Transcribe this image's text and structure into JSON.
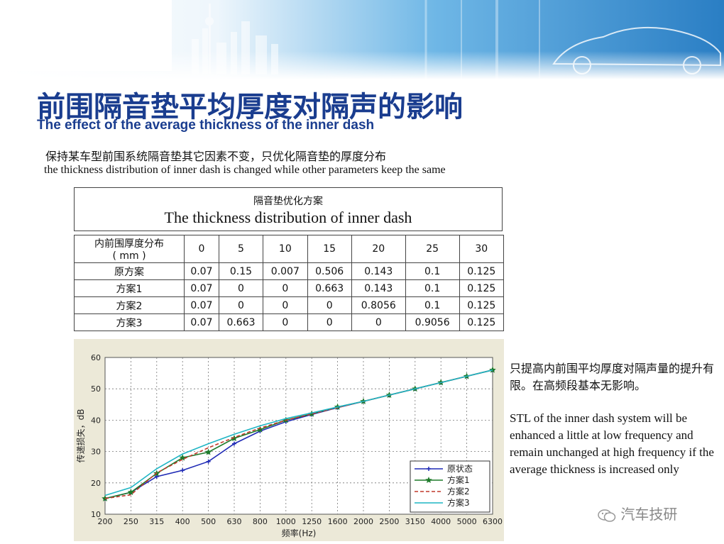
{
  "header": {
    "title_cn": "前围隔音垫平均厚度对隔声的影响",
    "title_en": "The effect of the average thickness of the inner dash"
  },
  "intro": {
    "cn": "保持某车型前围系统隔音垫其它因素不变，只优化隔音垫的厚度分布",
    "en": "the thickness distribution of inner dash is changed while other parameters keep the same"
  },
  "table_caption": {
    "cn": "隔音垫优化方案",
    "en": "The thickness distribution of inner dash"
  },
  "thickness_table": {
    "header_label_line1": "内前围厚度分布",
    "header_label_line2": "( mm )",
    "columns": [
      "0",
      "5",
      "10",
      "15",
      "20",
      "25",
      "30"
    ],
    "rows": [
      {
        "name": "原方案",
        "values": [
          "0.07",
          "0.15",
          "0.007",
          "0.506",
          "0.143",
          "0.1",
          "0.125"
        ]
      },
      {
        "name": "方案1",
        "values": [
          "0.07",
          "0",
          "0",
          "0.663",
          "0.143",
          "0.1",
          "0.125"
        ]
      },
      {
        "name": "方案2",
        "values": [
          "0.07",
          "0",
          "0",
          "0",
          "0.8056",
          "0.1",
          "0.125"
        ]
      },
      {
        "name": "方案3",
        "values": [
          "0.07",
          "0.663",
          "0",
          "0",
          "0",
          "0.9056",
          "0.125"
        ]
      }
    ]
  },
  "chart_data": {
    "type": "line",
    "x": [
      "200",
      "250",
      "315",
      "400",
      "500",
      "630",
      "800",
      "1000",
      "1250",
      "1600",
      "2000",
      "2500",
      "3150",
      "4000",
      "5000",
      "6300"
    ],
    "xlabel": "频率(Hz)",
    "ylabel": "传递损失，dB",
    "ylim": [
      10,
      60
    ],
    "yticks": [
      10,
      20,
      30,
      40,
      50,
      60
    ],
    "grid": true,
    "legend_position": "bottom-right",
    "series": [
      {
        "name": "原状态",
        "color": "#1f2ab5",
        "dash": "solid",
        "marker": "plus",
        "values": [
          15.0,
          17.0,
          22.0,
          24.0,
          26.8,
          32.5,
          36.5,
          39.5,
          41.8,
          44.0,
          46.0,
          48.0,
          50.0,
          52.0,
          54.0,
          56.0
        ]
      },
      {
        "name": "方案1",
        "color": "#1e7a2a",
        "dash": "solid",
        "marker": "star",
        "values": [
          15.0,
          17.0,
          23.0,
          28.0,
          29.8,
          34.2,
          37.0,
          40.0,
          42.0,
          44.2,
          46.0,
          48.0,
          50.0,
          52.0,
          54.0,
          56.0
        ]
      },
      {
        "name": "方案2",
        "color": "#c0392b",
        "dash": "dashed",
        "marker": "none",
        "values": [
          15.0,
          16.2,
          23.2,
          27.5,
          31.2,
          34.5,
          37.5,
          40.0,
          42.0,
          44.0,
          46.0,
          48.0,
          50.0,
          52.0,
          54.0,
          56.0
        ]
      },
      {
        "name": "方案3",
        "color": "#1fb5c4",
        "dash": "solid",
        "marker": "none",
        "values": [
          16.0,
          18.5,
          24.5,
          29.2,
          32.5,
          35.5,
          38.2,
          40.5,
          42.3,
          44.2,
          46.0,
          48.0,
          50.0,
          52.0,
          54.0,
          56.0
        ]
      }
    ]
  },
  "side_note": {
    "cn": "只提高内前围平均厚度对隔声量的提升有限。在高频段基本无影响。",
    "en": "STL of the inner dash system will be enhanced a little at low frequency and remain unchanged at high frequency if the average thickness is increased only"
  },
  "watermark": {
    "text": "汽车技研",
    "icon": "wechat-icon"
  }
}
